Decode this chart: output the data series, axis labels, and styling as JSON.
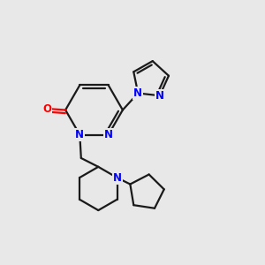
{
  "bg_color": "#e8e8e8",
  "bond_color": "#1a1a1a",
  "N_color": "#0000ff",
  "O_color": "#ff0000",
  "line_width": 1.6,
  "figsize": [
    3.0,
    3.0
  ],
  "dpi": 100,
  "xlim": [
    0,
    10
  ],
  "ylim": [
    0,
    10
  ]
}
